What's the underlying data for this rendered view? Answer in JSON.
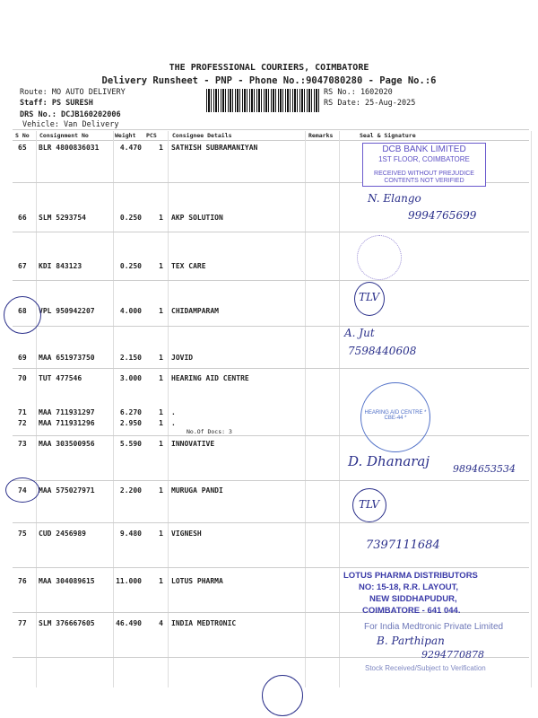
{
  "header": {
    "company": "THE PROFESSIONAL COURIERS, COIMBATORE",
    "subtitle": "Delivery Runsheet - PNP - Phone No.:9047080280 - Page No.:6",
    "route": "Route: MO AUTO DELIVERY",
    "staff": "Staff: PS SURESH",
    "drs": "DRS No.: DCJB160202006",
    "vehicle": "Vehicle: Van Delivery",
    "rs_no": "RS No.: 1602020",
    "rs_date": "RS Date: 25-Aug-2025"
  },
  "table": {
    "columns": [
      "S No",
      "Consignment No",
      "Weight",
      "PCS",
      "Consignee Details",
      "Remarks",
      "Seal & Signature"
    ],
    "rows": [
      {
        "sno": "65",
        "cn": "BLR 4800836031",
        "wt": "4.470",
        "pcs": "1",
        "name": "SATHISH SUBRAMANIYAN"
      },
      {
        "sno": "66",
        "cn": "SLM 5293754",
        "wt": "0.250",
        "pcs": "1",
        "name": "AKP SOLUTION"
      },
      {
        "sno": "67",
        "cn": "KDI 843123",
        "wt": "0.250",
        "pcs": "1",
        "name": "TEX CARE"
      },
      {
        "sno": "68",
        "cn": "VPL 950942207",
        "wt": "4.000",
        "pcs": "1",
        "name": "CHIDAMPARAM"
      },
      {
        "sno": "69",
        "cn": "MAA 651973750",
        "wt": "2.150",
        "pcs": "1",
        "name": "JOVID"
      },
      {
        "sno": "70",
        "cn": "TUT 477546",
        "wt": "3.000",
        "pcs": "1",
        "name": "HEARING AID CENTRE"
      },
      {
        "sno": "71",
        "cn": "MAA 711931297",
        "wt": "6.270",
        "pcs": "1",
        "name": "."
      },
      {
        "sno": "72",
        "cn": "MAA 711931296",
        "wt": "2.950",
        "pcs": "1",
        "name": "."
      },
      {
        "sno": "73",
        "cn": "MAA 303500956",
        "wt": "5.590",
        "pcs": "1",
        "name": "INNOVATIVE"
      },
      {
        "sno": "74",
        "cn": "MAA 575027971",
        "wt": "2.200",
        "pcs": "1",
        "name": "MURUGA PANDI"
      },
      {
        "sno": "75",
        "cn": "CUD 2456989",
        "wt": "9.480",
        "pcs": "1",
        "name": "VIGNESH"
      },
      {
        "sno": "76",
        "cn": "MAA 304089615",
        "wt": "11.000",
        "pcs": "1",
        "name": "LOTUS PHARMA"
      },
      {
        "sno": "77",
        "cn": "SLM 376667605",
        "wt": "46.490",
        "pcs": "4",
        "name": "INDIA MEDTRONIC"
      }
    ],
    "docs_note": "No.Of Docs: 3"
  },
  "stamps": {
    "dcb": [
      "DCB BANK LIMITED",
      "1ST FLOOR, COIMBATORE",
      "RECEIVED WITHOUT PREJUDICE",
      "CONTENTS NOT VERIFIED"
    ],
    "hearing": "HEARING AID CENTRE * CBE-44 *",
    "lotus": [
      "LOTUS PHARMA DISTRIBUTORS",
      "NO: 15-18, R.R. LAYOUT,",
      "NEW SIDDHAPUDUR,",
      "COIMBATORE - 641 044."
    ],
    "medtronic": [
      "For India Medtronic Private Limited",
      "Stock Received/Subject to Verification"
    ]
  },
  "handwriting": {
    "r66_name": "N. Elango",
    "r66_phone": "9994765699",
    "r68": "TLV",
    "r69_name": "A. Jut",
    "r69_phone": "7598440608",
    "r73": "D. Dhanaraj",
    "r73_phone": "9894653534",
    "r74": "TLV",
    "r75_phone": "7397111684",
    "r77_name": "B. Parthipan",
    "r77_phone": "9294770878"
  },
  "colors": {
    "ink": "#2a2f8a",
    "stamp": "#5b4fc4"
  }
}
